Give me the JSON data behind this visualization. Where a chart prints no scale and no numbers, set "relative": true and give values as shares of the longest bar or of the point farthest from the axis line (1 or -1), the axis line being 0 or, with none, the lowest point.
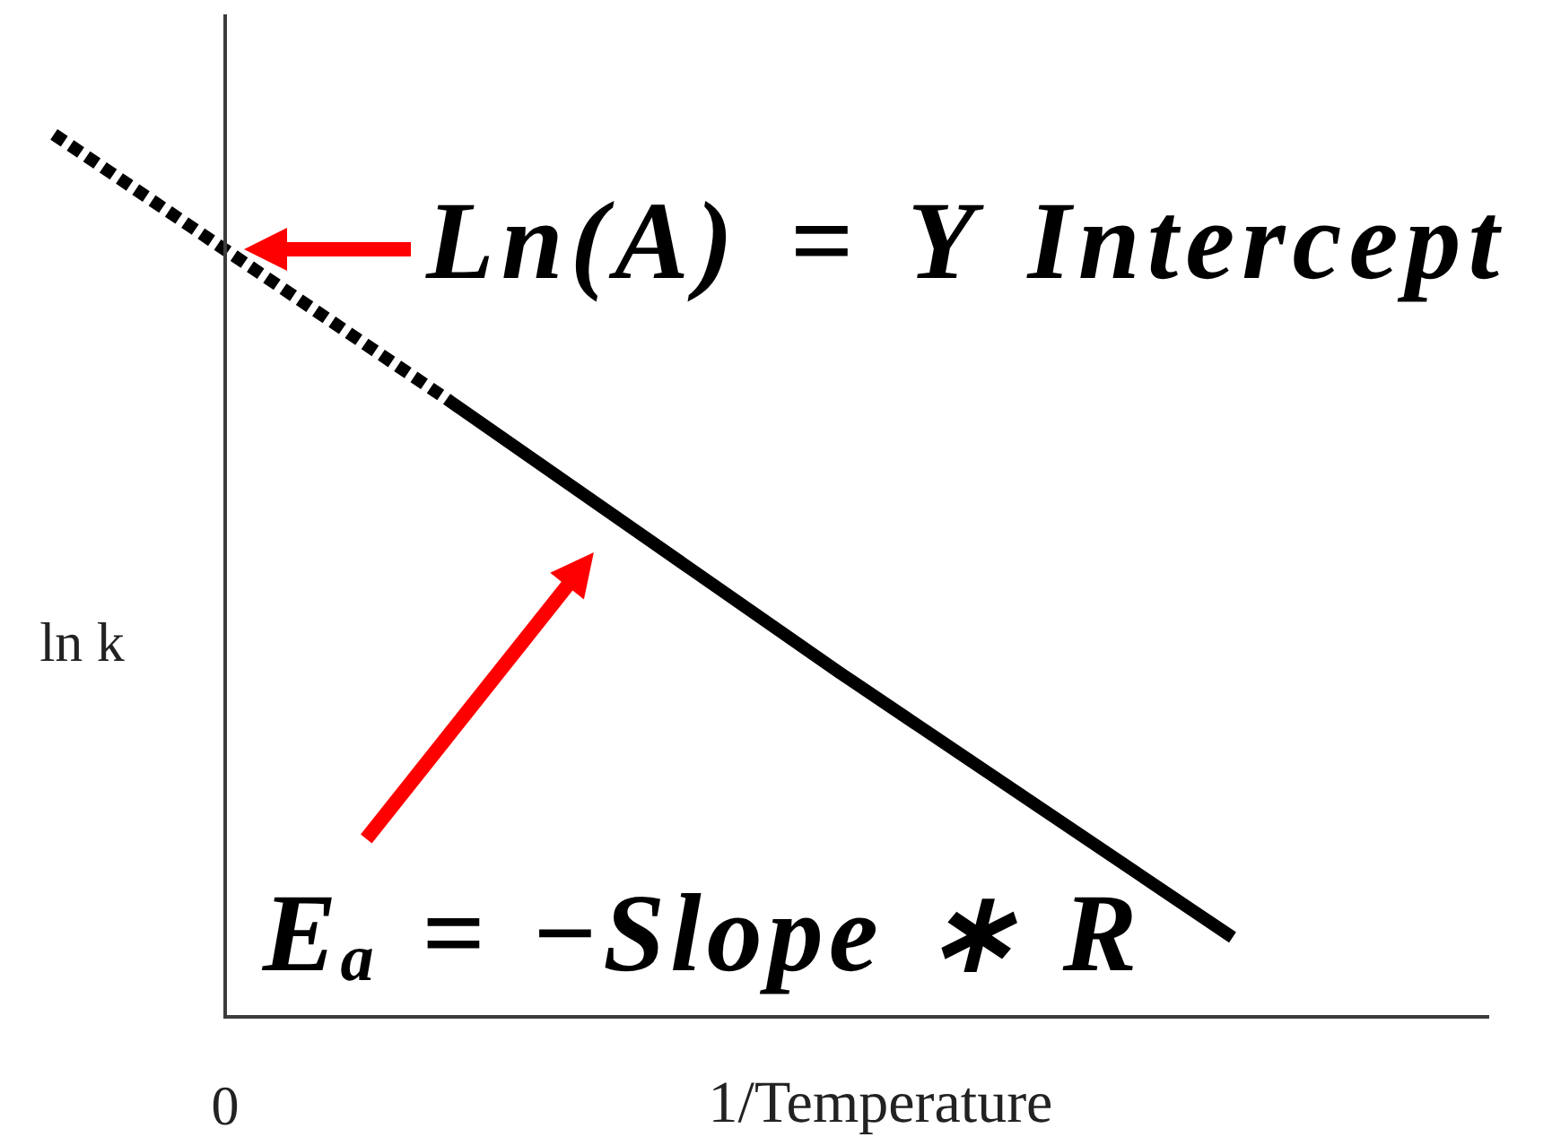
{
  "chart_data": {
    "type": "line",
    "xlabel": "1/Temperature",
    "ylabel": "ln k",
    "relative": true,
    "categories": [
      null,
      null,
      null,
      null
    ],
    "series": [
      {
        "values": [
          1,
          0.7,
          null,
          null
        ],
        "color": "#000000",
        "line_style": "dotted"
      },
      {
        "values": [
          null,
          0.7,
          0.39,
          0.09
        ],
        "color": "#000000",
        "line_style": "solid"
      }
    ],
    "annotations": [
      "Ln(A) = Y Intercept",
      "Eₐ = −Slope ∗ R",
      "0"
    ]
  }
}
